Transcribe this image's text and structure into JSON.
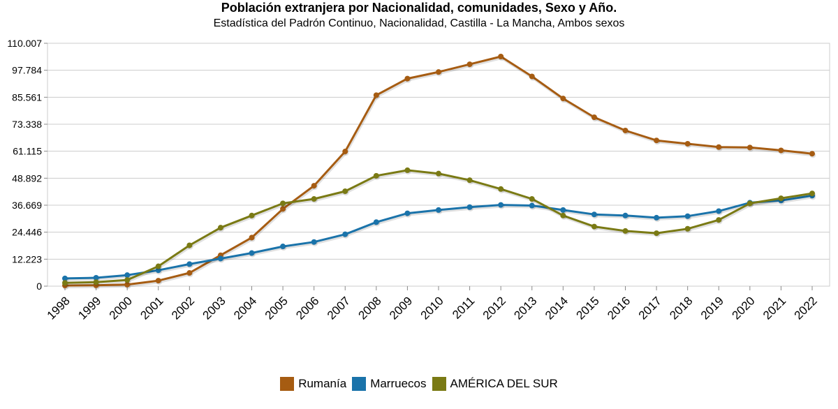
{
  "chart_data": {
    "type": "line",
    "title": "Población extranjera por Nacionalidad, comunidades, Sexo y Año.",
    "subtitle": "Estadística del Padrón Continuo, Nacionalidad, Castilla - La Mancha, Ambos sexos",
    "xlabel": "",
    "ylabel": "",
    "ylim": [
      0,
      110007
    ],
    "yticks": [
      0,
      12223,
      24446,
      36669,
      48892,
      61115,
      73338,
      85561,
      97784,
      110007
    ],
    "ytick_labels": [
      "0",
      "12.223",
      "24.446",
      "36.669",
      "48.892",
      "61.115",
      "73.338",
      "85.561",
      "97.784",
      "110.007"
    ],
    "categories": [
      "1998",
      "1999",
      "2000",
      "2001",
      "2002",
      "2003",
      "2004",
      "2005",
      "2006",
      "2007",
      "2008",
      "2009",
      "2010",
      "2011",
      "2012",
      "2013",
      "2014",
      "2015",
      "2016",
      "2017",
      "2018",
      "2019",
      "2020",
      "2021",
      "2022"
    ],
    "grid": true,
    "legend_position": "bottom",
    "series": [
      {
        "name": "Rumanía",
        "color": "#a65c12",
        "values": [
          300,
          400,
          700,
          2500,
          6000,
          14000,
          22000,
          35000,
          45500,
          61000,
          86500,
          94000,
          97000,
          100500,
          104000,
          95000,
          85000,
          76500,
          70500,
          66000,
          64500,
          63000,
          62800,
          61500,
          60000
        ]
      },
      {
        "name": "Marruecos",
        "color": "#1a73aa",
        "values": [
          3500,
          3800,
          5000,
          7200,
          10000,
          12500,
          15000,
          18000,
          20000,
          23500,
          29000,
          33000,
          34500,
          35800,
          36800,
          36500,
          34500,
          32500,
          32000,
          31000,
          31700,
          34000,
          37800,
          38800,
          41000
        ]
      },
      {
        "name": "AMÉRICA DEL SUR",
        "color": "#7a7a14",
        "values": [
          1500,
          1800,
          2800,
          9000,
          18500,
          26500,
          32000,
          37500,
          39500,
          43000,
          50000,
          52500,
          51000,
          48000,
          44000,
          39500,
          32000,
          27000,
          25000,
          24000,
          26000,
          30000,
          37500,
          39800,
          42000
        ]
      }
    ]
  }
}
